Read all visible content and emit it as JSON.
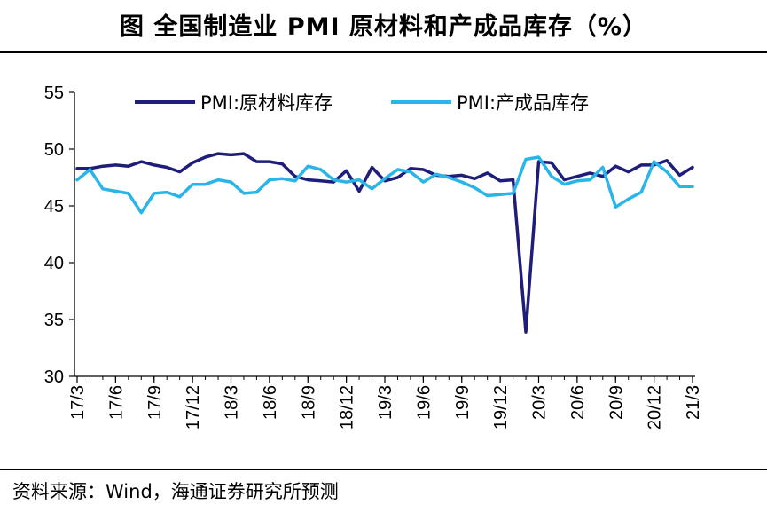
{
  "title": "图  全国制造业 PMI 原材料和产成品库存（%）",
  "source": "资料来源：Wind，海通证券研究所预测",
  "chart_data": {
    "type": "line",
    "ylim": [
      30,
      55
    ],
    "yticks": [
      30,
      35,
      40,
      45,
      50,
      55
    ],
    "x_start": "2017-03",
    "x_end": "2021-03",
    "xticks": [
      "17/3",
      "17/6",
      "17/9",
      "17/12",
      "18/3",
      "18/6",
      "18/9",
      "18/12",
      "19/3",
      "19/6",
      "19/9",
      "19/12",
      "20/3",
      "20/6",
      "20/9",
      "20/12",
      "21/3"
    ],
    "legend_position": "top",
    "series": [
      {
        "name": "PMI:原材料库存",
        "color": "#1f1d7a",
        "values": [
          48.3,
          48.3,
          48.5,
          48.6,
          48.5,
          48.9,
          48.6,
          48.4,
          48.0,
          48.8,
          49.3,
          49.6,
          49.5,
          49.6,
          48.9,
          48.9,
          48.7,
          47.6,
          47.3,
          47.2,
          47.1,
          48.1,
          46.3,
          48.4,
          47.2,
          47.5,
          48.3,
          48.2,
          47.7,
          47.6,
          47.7,
          47.4,
          47.9,
          47.2,
          47.3,
          33.9,
          48.9,
          48.8,
          47.3,
          47.6,
          47.9,
          47.6,
          48.5,
          48.0,
          48.6,
          48.6,
          49.0,
          47.7,
          48.4
        ]
      },
      {
        "name": "PMI:产成品库存",
        "color": "#29b5e8",
        "values": [
          47.3,
          48.2,
          46.5,
          46.3,
          46.1,
          44.4,
          46.1,
          46.2,
          45.8,
          46.9,
          46.9,
          47.3,
          47.1,
          46.1,
          46.2,
          47.3,
          47.4,
          47.2,
          48.5,
          48.2,
          47.3,
          47.1,
          47.3,
          46.5,
          47.4,
          48.2,
          48.0,
          47.1,
          47.8,
          47.5,
          47.1,
          46.6,
          45.9,
          46.0,
          46.1,
          49.1,
          49.3,
          47.6,
          46.9,
          47.2,
          47.3,
          48.4,
          44.9,
          45.6,
          46.2,
          48.9,
          48.0,
          46.7,
          46.7
        ]
      }
    ]
  }
}
